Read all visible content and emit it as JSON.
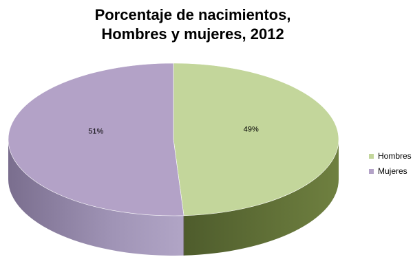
{
  "chart_data": {
    "type": "pie",
    "title_line1": "Porcentaje de nacimientos,",
    "title_line2": "Hombres y mujeres, 2012",
    "slices": [
      {
        "name": "Hombres",
        "value": 49,
        "label": "49%",
        "color": "#c3d69b"
      },
      {
        "name": "Mujeres",
        "value": 51,
        "label": "51%",
        "color": "#b3a2c7"
      }
    ],
    "legend_position": "right"
  }
}
